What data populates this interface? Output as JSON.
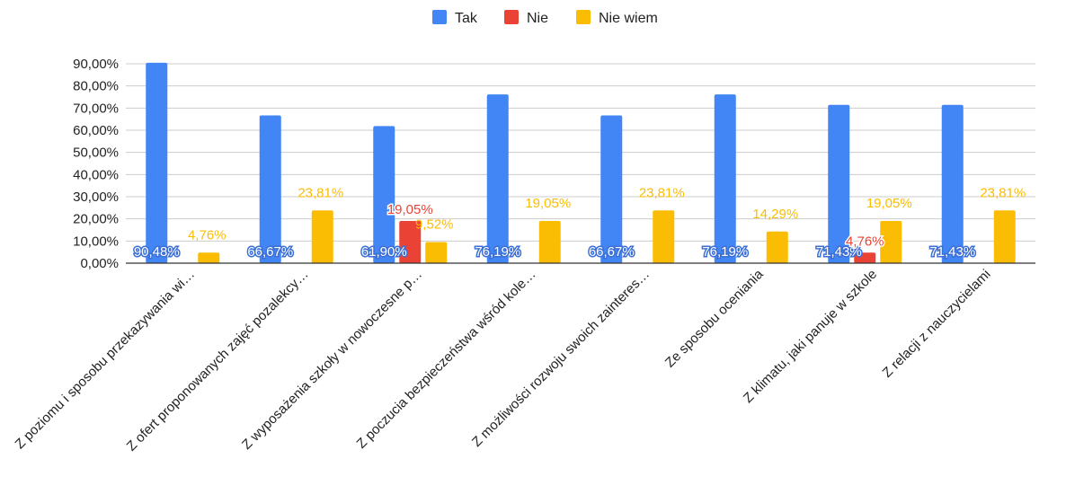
{
  "chart_data": {
    "type": "bar",
    "categories": [
      "Z poziomu i sposobu przekazywania wi…",
      "Z ofert proponowanych zajęć pozalekcy…",
      "Z wyposażenia szkoły w nowoczesne p…",
      "Z poczucia bezpieczeństwa wśród kole…",
      "Z możliwości rozwoju swoich zainteres…",
      "Ze sposobu oceniania",
      "Z klimatu, jaki panuje w szkole",
      "Z relacji z nauczycielami"
    ],
    "series": [
      {
        "name": "Tak",
        "color": "#4285f4",
        "values": [
          90.48,
          66.67,
          61.9,
          76.19,
          66.67,
          76.19,
          71.43,
          71.43
        ],
        "labels": [
          "90,48%",
          "66,67%",
          "61,90%",
          "76,19%",
          "66,67%",
          "76,19%",
          "71,43%",
          "71,43%"
        ]
      },
      {
        "name": "Nie",
        "color": "#ea4335",
        "values": [
          0,
          0,
          19.05,
          0,
          0,
          0,
          4.76,
          0
        ],
        "labels": [
          "",
          "",
          "19,05%",
          "",
          "",
          "",
          "4,76%",
          ""
        ]
      },
      {
        "name": "Nie wiem",
        "color": "#fbbc04",
        "values": [
          4.76,
          23.81,
          9.52,
          19.05,
          23.81,
          14.29,
          19.05,
          23.81
        ],
        "labels": [
          "4,76%",
          "23,81%",
          "9,52%",
          "19,05%",
          "23,81%",
          "14,29%",
          "19,05%",
          "23,81%"
        ]
      }
    ],
    "yticks": [
      "0,00%",
      "10,00%",
      "20,00%",
      "30,00%",
      "40,00%",
      "50,00%",
      "60,00%",
      "70,00%",
      "80,00%",
      "90,00%"
    ],
    "ylim": [
      0,
      90
    ],
    "grid": true,
    "legend": "top-center",
    "title": "",
    "xlabel": "",
    "ylabel": ""
  }
}
